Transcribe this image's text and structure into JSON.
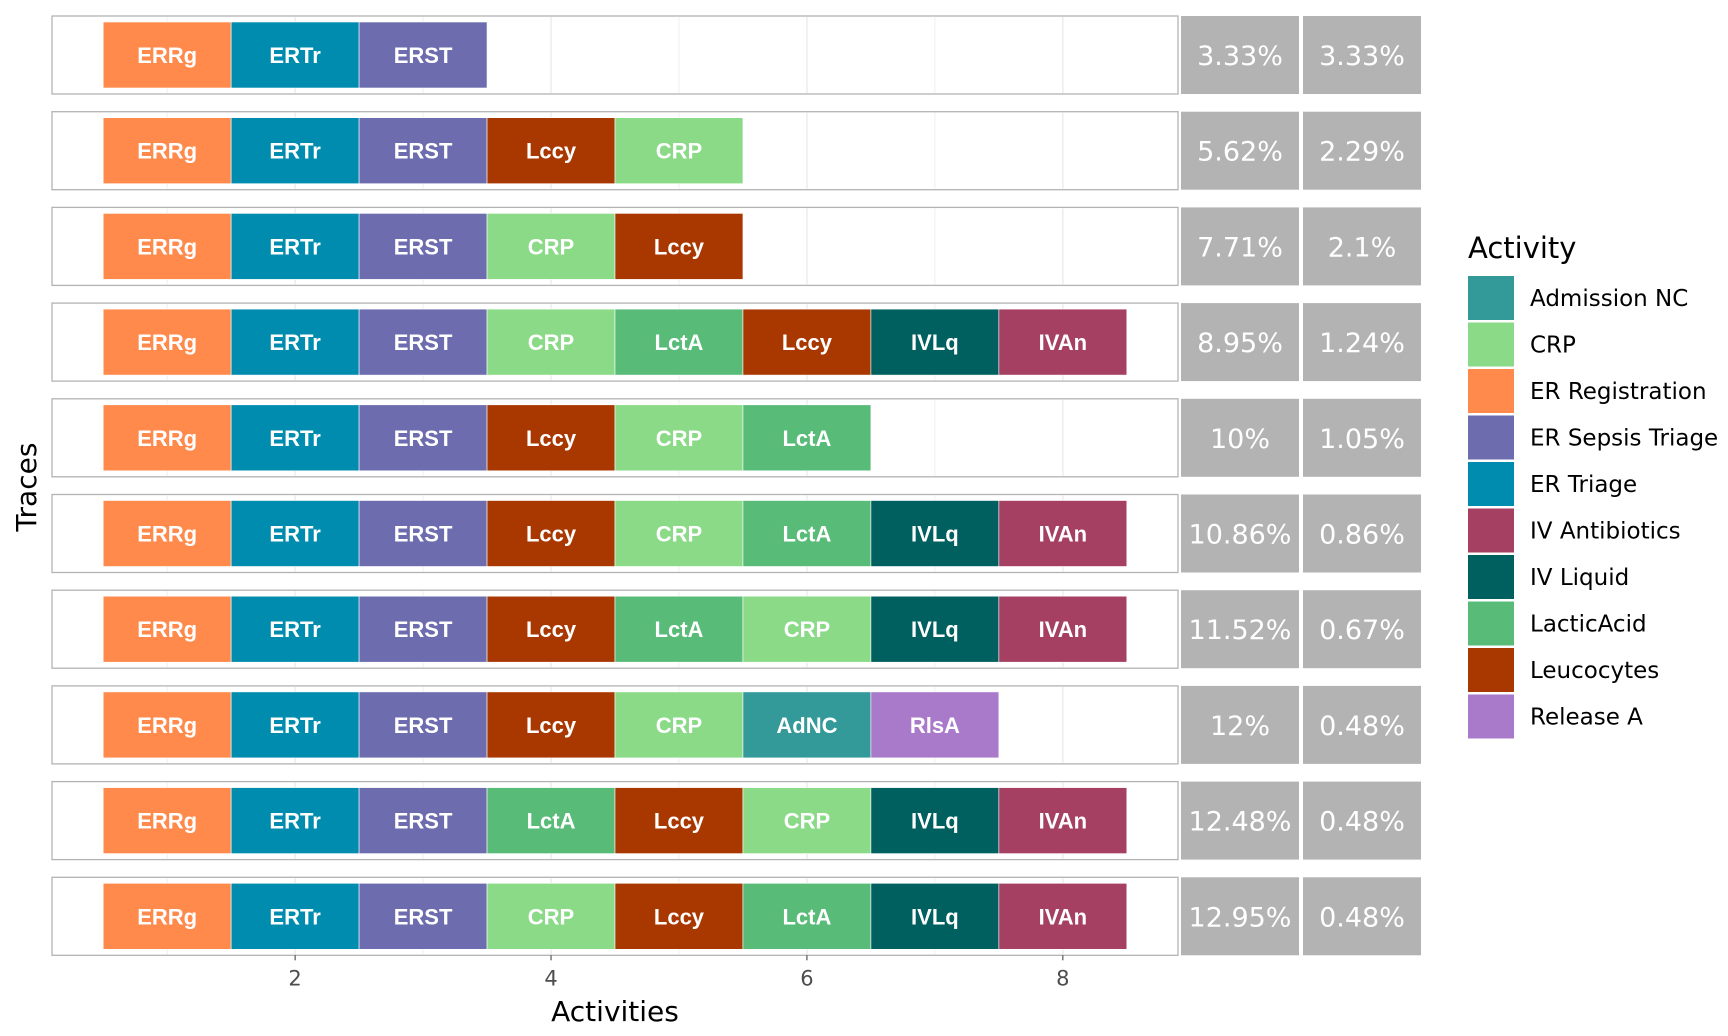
{
  "chart_data": {
    "type": "bar",
    "xlabel": "Activities",
    "ylabel": "Traces",
    "xlim": [
      0.1,
      8.9
    ],
    "x_ticks": [
      "2",
      "4",
      "6",
      "8"
    ],
    "legend": {
      "title": "Activity",
      "position": "right",
      "entries": [
        {
          "name": "Admission NC",
          "abbr": "AdNC",
          "color": "#339999"
        },
        {
          "name": "CRP",
          "abbr": "CRP",
          "color": "#8ADA87"
        },
        {
          "name": "ER Registration",
          "abbr": "ERRg",
          "color": "#FF8A4C"
        },
        {
          "name": "ER Sepsis Triage",
          "abbr": "ERST",
          "color": "#6C6CAF"
        },
        {
          "name": "ER Triage",
          "abbr": "ERTr",
          "color": "#008CAE"
        },
        {
          "name": "IV Antibiotics",
          "abbr": "IVAn",
          "color": "#A64062"
        },
        {
          "name": "IV Liquid",
          "abbr": "IVLq",
          "color": "#005F5F"
        },
        {
          "name": "LacticAcid",
          "abbr": "LctA",
          "color": "#59BB78"
        },
        {
          "name": "Leucocytes",
          "abbr": "Lccy",
          "color": "#A93800"
        },
        {
          "name": "Release A",
          "abbr": "RlsA",
          "color": "#A97AC9"
        }
      ]
    },
    "traces": [
      {
        "activities": [
          "ERRg",
          "ERTr",
          "ERST"
        ],
        "cumulative": "3.33%",
        "relative": "3.33%"
      },
      {
        "activities": [
          "ERRg",
          "ERTr",
          "ERST",
          "Lccy",
          "CRP"
        ],
        "cumulative": "5.62%",
        "relative": "2.29%"
      },
      {
        "activities": [
          "ERRg",
          "ERTr",
          "ERST",
          "CRP",
          "Lccy"
        ],
        "cumulative": "7.71%",
        "relative": "2.1%"
      },
      {
        "activities": [
          "ERRg",
          "ERTr",
          "ERST",
          "CRP",
          "LctA",
          "Lccy",
          "IVLq",
          "IVAn"
        ],
        "cumulative": "8.95%",
        "relative": "1.24%"
      },
      {
        "activities": [
          "ERRg",
          "ERTr",
          "ERST",
          "Lccy",
          "CRP",
          "LctA"
        ],
        "cumulative": "10%",
        "relative": "1.05%"
      },
      {
        "activities": [
          "ERRg",
          "ERTr",
          "ERST",
          "Lccy",
          "CRP",
          "LctA",
          "IVLq",
          "IVAn"
        ],
        "cumulative": "10.86%",
        "relative": "0.86%"
      },
      {
        "activities": [
          "ERRg",
          "ERTr",
          "ERST",
          "Lccy",
          "LctA",
          "CRP",
          "IVLq",
          "IVAn"
        ],
        "cumulative": "11.52%",
        "relative": "0.67%"
      },
      {
        "activities": [
          "ERRg",
          "ERTr",
          "ERST",
          "Lccy",
          "CRP",
          "AdNC",
          "RlsA"
        ],
        "cumulative": "12%",
        "relative": "0.48%"
      },
      {
        "activities": [
          "ERRg",
          "ERTr",
          "ERST",
          "LctA",
          "Lccy",
          "CRP",
          "IVLq",
          "IVAn"
        ],
        "cumulative": "12.48%",
        "relative": "0.48%"
      },
      {
        "activities": [
          "ERRg",
          "ERTr",
          "ERST",
          "CRP",
          "Lccy",
          "LctA",
          "IVLq",
          "IVAn"
        ],
        "cumulative": "12.95%",
        "relative": "0.48%"
      }
    ]
  }
}
